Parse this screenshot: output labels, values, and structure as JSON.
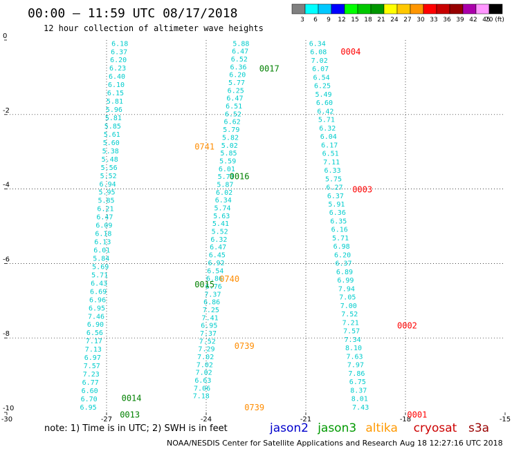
{
  "header": {
    "title": "00:00 — 11:59 UTC 08/17/2018",
    "subtitle": "12 hour collection of altimeter wave heights"
  },
  "colorbar": {
    "labels": [
      "3",
      "6",
      "9",
      "12",
      "15",
      "18",
      "21",
      "24",
      "27",
      "30",
      "33",
      "36",
      "39",
      "42",
      "45",
      "70 (ft)"
    ],
    "colors": [
      "#808080",
      "#00ffff",
      "#00c8ff",
      "#0000ff",
      "#00ff00",
      "#00c800",
      "#009600",
      "#ffff00",
      "#ffc800",
      "#ff9600",
      "#ff0000",
      "#c80000",
      "#960000",
      "#aa00aa",
      "#ff96ff",
      "#000000"
    ]
  },
  "chart_data": {
    "type": "scatter",
    "xlim": [
      -30,
      -15
    ],
    "ylim": [
      -10,
      0
    ],
    "x_ticks": [
      "-30",
      "-27",
      "-24",
      "-21",
      "-18",
      "-15"
    ],
    "y_ticks": [
      "0",
      "-2",
      "-4",
      "-6",
      "-8",
      "-10"
    ],
    "grid": true,
    "value_color": "#00cccc",
    "tracks": [
      {
        "values": [
          "6.18",
          "6.37",
          "6.20",
          "6.23",
          "6.40",
          "6.10",
          "6.15",
          "5.81",
          "5.96",
          "5.81",
          "5.85",
          "5.61",
          "5.60",
          "5.38",
          "5.48",
          "5.56",
          "5.52",
          "6.94",
          "5.95",
          "5.85",
          "6.21",
          "6.47",
          "6.09",
          "6.18",
          "6.13",
          "6.01",
          "5.84",
          "5.69",
          "5.71",
          "6.43",
          "6.69",
          "6.96",
          "6.95",
          "7.46",
          "6.90",
          "6.56",
          "7.17",
          "7.13",
          "6.97",
          "7.57",
          "7.23",
          "6.77",
          "6.60",
          "6.70",
          "6.95"
        ],
        "x0": -26.6,
        "y0": -0.08,
        "x1": -27.55,
        "y1": -9.85
      },
      {
        "values": [
          "5.88",
          "6.47",
          "6.52",
          "6.36",
          "6.20",
          "5.77",
          "6.25",
          "6.47",
          "6.51",
          "6.52",
          "6.62",
          "5.79",
          "5.82",
          "5.02",
          "5.85",
          "5.59",
          "6.01",
          "5.77",
          "5.87",
          "6.02",
          "6.34",
          "5.74",
          "5.63",
          "5.41",
          "5.52",
          "6.32",
          "6.47",
          "6.45",
          "6.92",
          "6.54",
          "6.86",
          "6.76",
          "7.37",
          "6.86",
          "7.25",
          "7.41",
          "6.95",
          "7.37",
          "7.52",
          "7.29",
          "7.02",
          "7.02",
          "7.02",
          "6.63",
          "7.06",
          "7.18"
        ],
        "x0": -22.95,
        "y0": -0.08,
        "x1": -24.15,
        "y1": -9.55
      },
      {
        "values": [
          "6.34",
          "6.08",
          "7.02",
          "6.07",
          "6.54",
          "6.25",
          "5.49",
          "6.60",
          "6.42",
          "5.71",
          "6.32",
          "6.04",
          "6.17",
          "6.51",
          "7.11",
          "6.33",
          "5.75",
          "6.27",
          "6.37",
          "5.91",
          "6.36",
          "6.35",
          "6.16",
          "5.71",
          "6.98",
          "6.20",
          "6.37",
          "6.89",
          "6.99",
          "7.94",
          "7.05",
          "7.00",
          "7.52",
          "7.21",
          "7.57",
          "7.34",
          "8.10",
          "7.63",
          "7.97",
          "7.86",
          "6.75",
          "8.37",
          "8.01",
          "7.43"
        ],
        "x0": -20.65,
        "y0": -0.08,
        "x1": -19.35,
        "y1": -9.85
      }
    ],
    "pass_labels": [
      {
        "text": "0017",
        "x": -22.4,
        "y": -0.75,
        "color": "#008000"
      },
      {
        "text": "0016",
        "x": -23.3,
        "y": -3.65,
        "color": "#008000"
      },
      {
        "text": "0015",
        "x": -24.35,
        "y": -6.55,
        "color": "#008000"
      },
      {
        "text": "0014",
        "x": -26.55,
        "y": -9.6,
        "color": "#008000"
      },
      {
        "text": "0013",
        "x": -26.6,
        "y": -10.05,
        "color": "#008000"
      },
      {
        "text": "0741",
        "x": -24.35,
        "y": -2.85,
        "color": "#ff8c00"
      },
      {
        "text": "0740",
        "x": -23.6,
        "y": -6.4,
        "color": "#ff8c00"
      },
      {
        "text": "0739",
        "x": -23.15,
        "y": -8.2,
        "color": "#ff8c00"
      },
      {
        "text": "0739",
        "x": -22.85,
        "y": -9.85,
        "color": "#ff8c00"
      },
      {
        "text": "0004",
        "x": -19.95,
        "y": -0.3,
        "color": "#ff0000"
      },
      {
        "text": "0003",
        "x": -19.6,
        "y": -4.0,
        "color": "#ff0000"
      },
      {
        "text": "0002",
        "x": -18.25,
        "y": -7.65,
        "color": "#ff0000"
      },
      {
        "text": "0001",
        "x": -17.95,
        "y": -10.05,
        "color": "#ff0000"
      }
    ]
  },
  "footer": {
    "note": "note:  1) Time is in UTC;  2) SWH is in feet",
    "satellites": [
      {
        "name": "jason2",
        "color": "#0000cc"
      },
      {
        "name": "jason3",
        "color": "#009900"
      },
      {
        "name": "altika",
        "color": "#ff9900"
      },
      {
        "name": "cryosat",
        "color": "#cc0000"
      },
      {
        "name": "s3a",
        "color": "#990000"
      }
    ],
    "credit": "NOAA/NESDIS Center for Satellite Applications and Research",
    "timestamp": "Aug 18 12:27:16 UTC 2018"
  }
}
